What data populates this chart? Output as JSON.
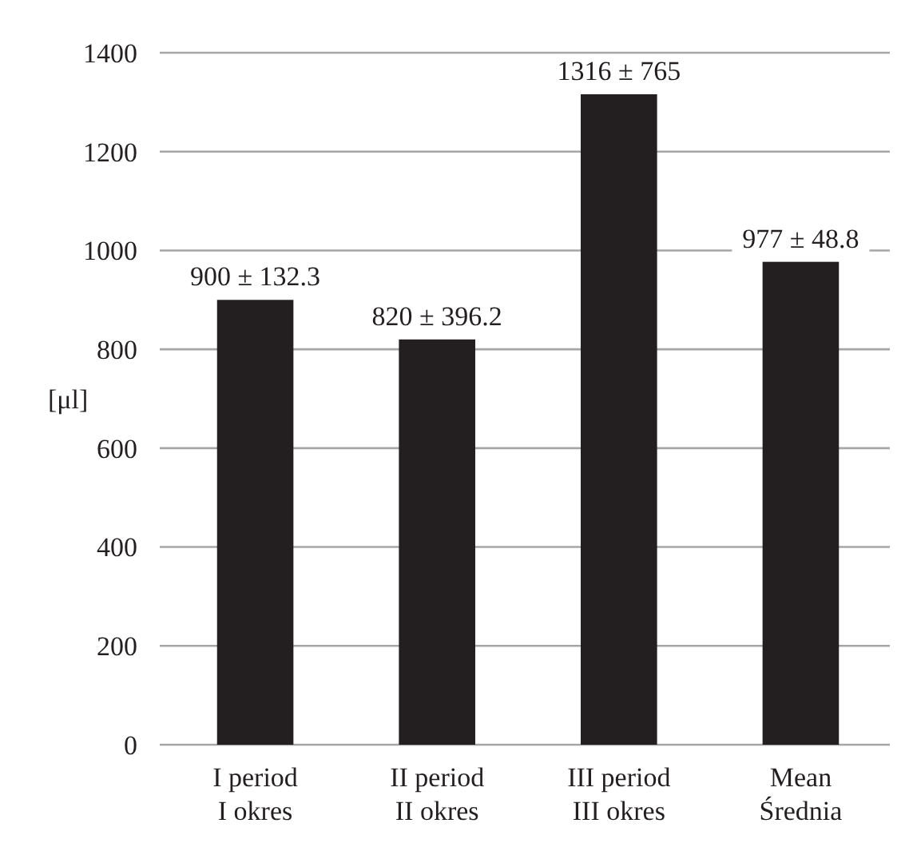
{
  "chart_data": {
    "type": "bar",
    "ylabel": "[μl]",
    "categories": [
      "I period\nI okres",
      "II period\nII okres",
      "III period\nIII okres",
      "Mean\nŚrednia"
    ],
    "values": [
      900,
      820,
      1316,
      977
    ],
    "color": "#231f20",
    "value_labels": [
      "900 ± 132.3",
      "820 ± 396.2",
      "1316 ± 765",
      "977 ± 48.8"
    ],
    "ylim": [
      0,
      1400
    ],
    "yticks": [
      0,
      200,
      400,
      600,
      800,
      1000,
      1200,
      1400
    ],
    "grid": "y"
  }
}
